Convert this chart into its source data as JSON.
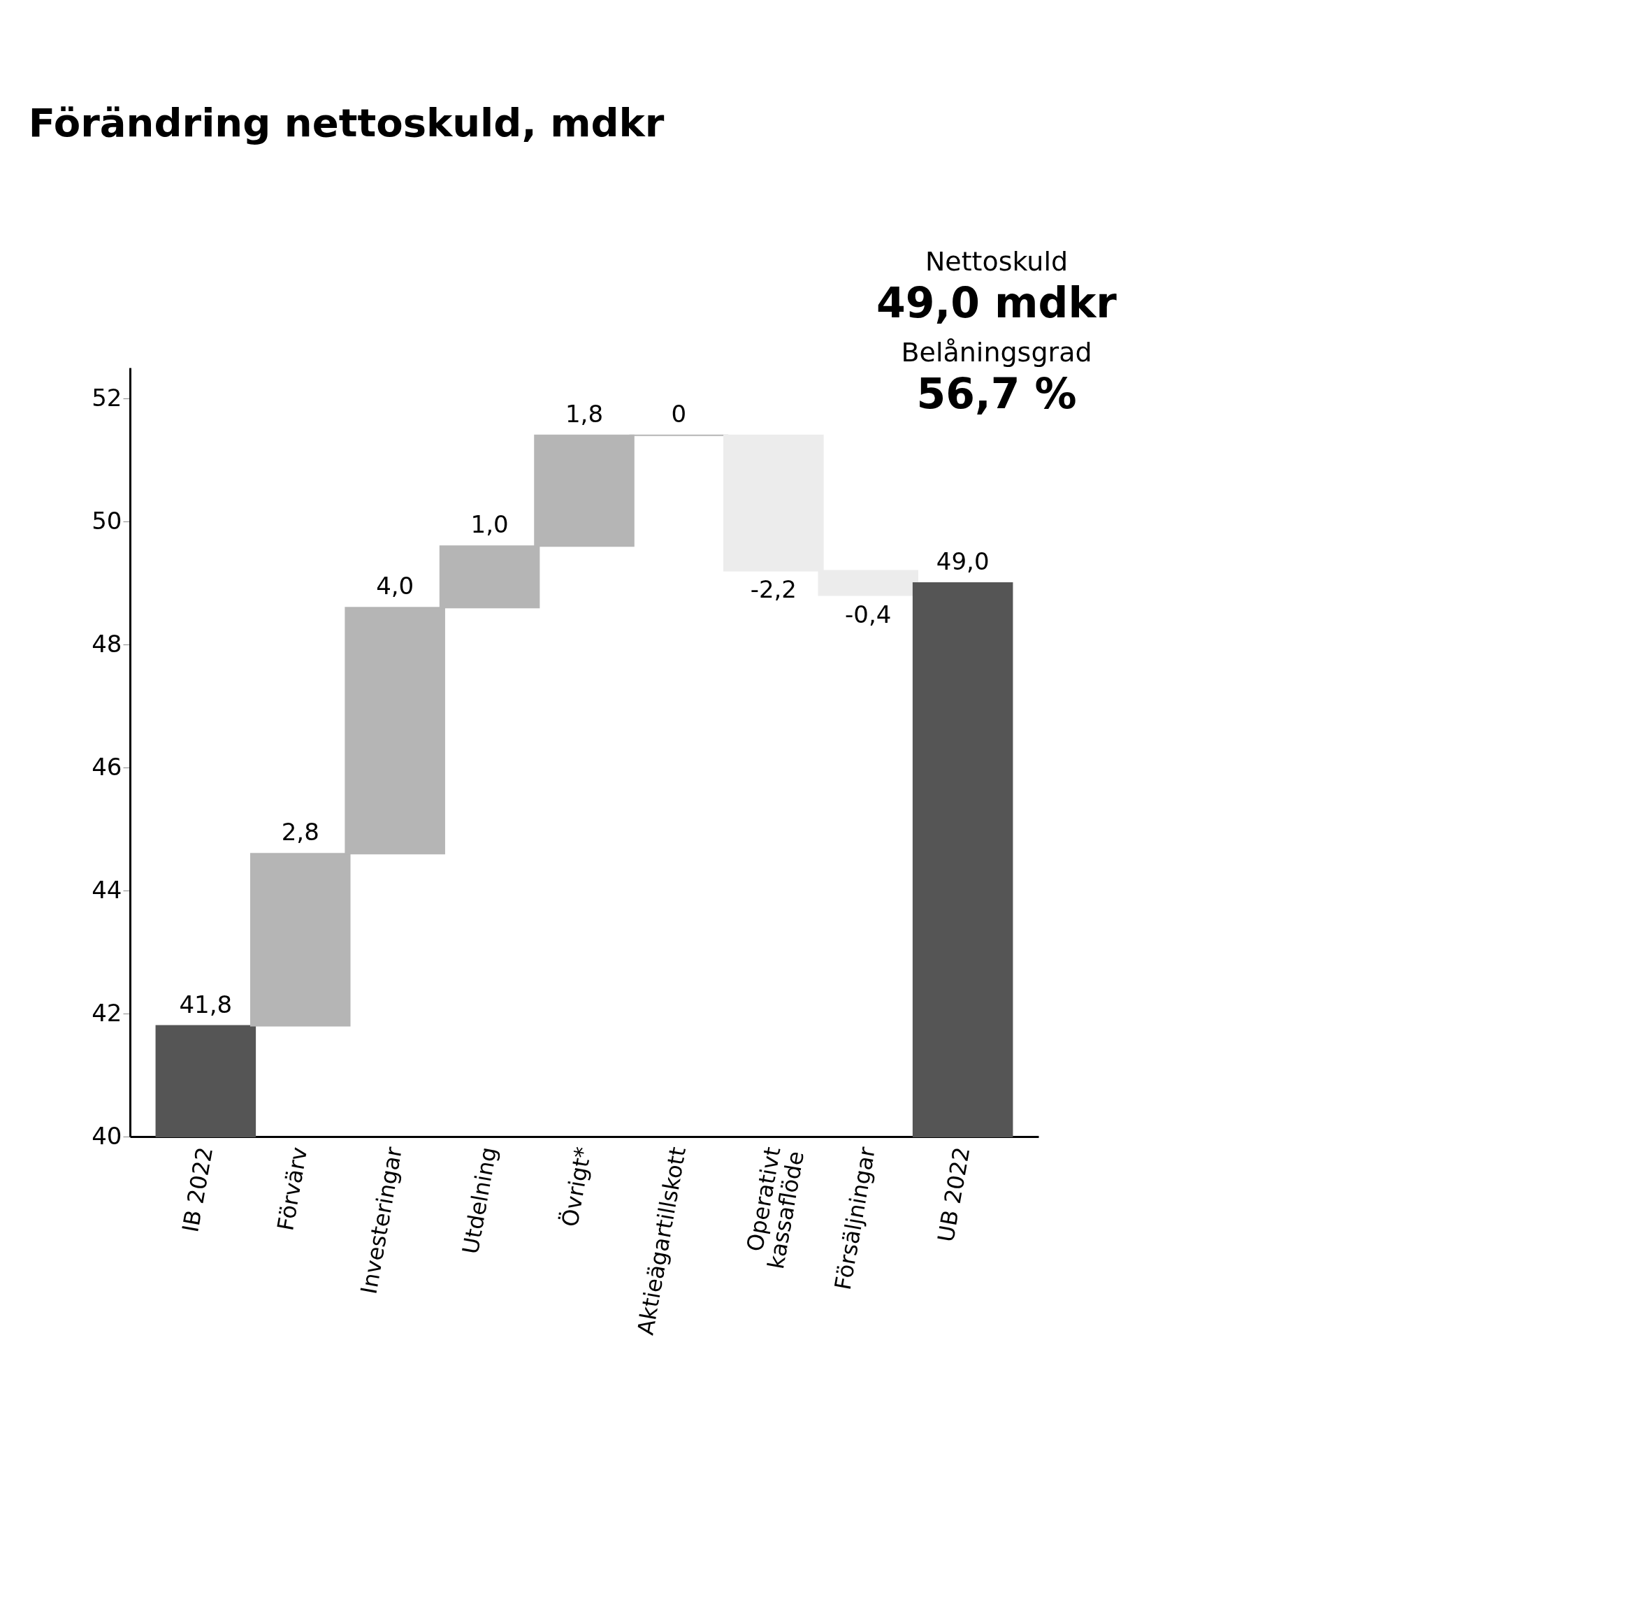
{
  "chart_data": {
    "type": "bar",
    "title": "Förändring nettoskuld, mdkr",
    "categories": [
      "IB 2022",
      "Förvärv",
      "Investeringar",
      "Utdelning",
      "Övrigt*",
      "Aktieägartillskott",
      "Operativt\nkassaflöde",
      "Försäljningar",
      "UB 2022"
    ],
    "values": [
      41.8,
      2.8,
      4.0,
      1.0,
      1.8,
      0,
      -2.2,
      -0.4,
      49.0
    ],
    "base": [
      null,
      41.8,
      44.6,
      48.6,
      49.6,
      51.4,
      51.4,
      49.2,
      null
    ],
    "colors": [
      "#555555",
      "#b5b5b5",
      "#b5b5b5",
      "#b5b5b5",
      "#b5b5b5",
      "#b5b5b5",
      "#ececec",
      "#ececec",
      "#555555"
    ],
    "value_labels": [
      "41,8",
      "2,8",
      "4,0",
      "1,0",
      "1,8",
      "0",
      "-2,2",
      "-0,4",
      "49,0"
    ],
    "ylim": [
      40,
      52.5
    ],
    "yticks": [
      40,
      42,
      44,
      46,
      48,
      50,
      52
    ],
    "grid": false,
    "annotations": [
      "Nettoskuld",
      "49,0 mdkr",
      "Belåningsgrad",
      "56,7 %"
    ]
  }
}
